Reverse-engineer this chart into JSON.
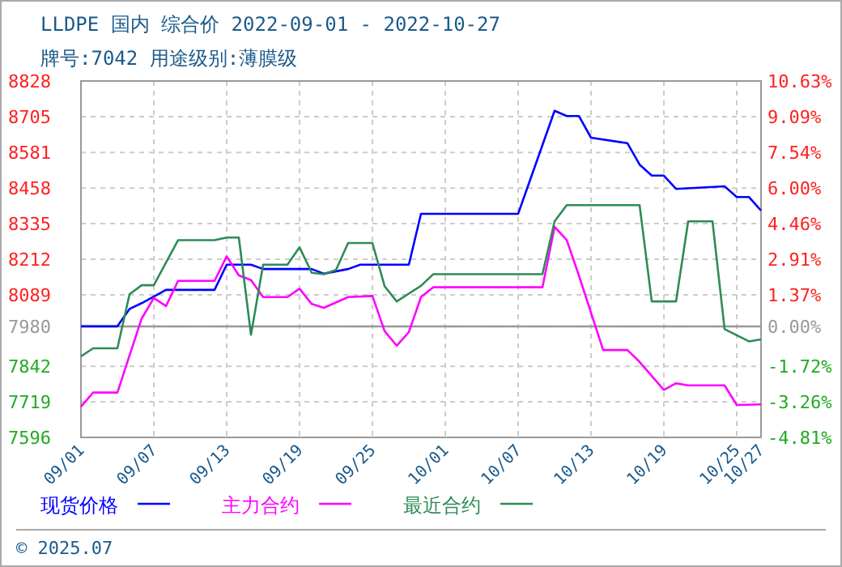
{
  "chart_data": {
    "type": "line",
    "title": "LLDPE 国内 综合价 2022-09-01 - 2022-10-27",
    "subtitle": "牌号:7042 用途级别:薄膜级",
    "annotations": [
      "© 2025.07"
    ],
    "xlim": [
      "2022-09-01",
      "2022-10-27"
    ],
    "xticks": [
      {
        "value": "2022-09-01",
        "label": "09/01"
      },
      {
        "value": "2022-09-07",
        "label": "09/07"
      },
      {
        "value": "2022-09-13",
        "label": "09/13"
      },
      {
        "value": "2022-09-19",
        "label": "09/19"
      },
      {
        "value": "2022-09-25",
        "label": "09/25"
      },
      {
        "value": "2022-10-01",
        "label": "10/01"
      },
      {
        "value": "2022-10-07",
        "label": "10/07"
      },
      {
        "value": "2022-10-13",
        "label": "10/13"
      },
      {
        "value": "2022-10-19",
        "label": "10/19"
      },
      {
        "value": "2022-10-25",
        "label": "10/25"
      },
      {
        "value": "2022-10-27",
        "label": "10/27"
      }
    ],
    "ylim": [
      7596,
      8828
    ],
    "yticks": [
      7596,
      7719,
      7842,
      7980,
      8089,
      8212,
      8335,
      8458,
      8581,
      8705,
      8828
    ],
    "y2lim": [
      -4.81,
      10.63
    ],
    "y2ticks": [
      {
        "value": -4.81,
        "label": "-4.81%"
      },
      {
        "value": -3.26,
        "label": "-3.26%"
      },
      {
        "value": -1.72,
        "label": "-1.72%"
      },
      {
        "value": 0,
        "label": "0.00%"
      },
      {
        "value": 1.37,
        "label": "1.37%"
      },
      {
        "value": 2.91,
        "label": "2.91%"
      },
      {
        "value": 4.46,
        "label": "4.46%"
      },
      {
        "value": 6.0,
        "label": "6.00%"
      },
      {
        "value": 7.54,
        "label": "7.54%"
      },
      {
        "value": 9.09,
        "label": "9.09%"
      },
      {
        "value": 10.63,
        "label": "10.63%"
      }
    ],
    "ref_lines": [
      {
        "axis": "y2",
        "value": 0,
        "color": "#999999"
      }
    ],
    "grid": true,
    "legend": "bottom",
    "marker": "none",
    "line_style": "solid",
    "series": [
      {
        "name": "现货价格",
        "color": "#0000ff",
        "x": [
          "2022-09-01",
          "2022-09-04",
          "2022-09-05",
          "2022-09-06",
          "2022-09-08",
          "2022-09-12",
          "2022-09-13",
          "2022-09-15",
          "2022-09-16",
          "2022-09-20",
          "2022-09-21",
          "2022-09-23",
          "2022-09-24",
          "2022-09-28",
          "2022-09-29",
          "2022-10-07",
          "2022-10-10",
          "2022-10-11",
          "2022-10-12",
          "2022-10-13",
          "2022-10-16",
          "2022-10-17",
          "2022-10-18",
          "2022-10-19",
          "2022-10-20",
          "2022-10-24",
          "2022-10-25",
          "2022-10-26",
          "2022-10-27"
        ],
        "values": [
          7980,
          7980,
          8040,
          8060,
          8106,
          8106,
          8193,
          8193,
          8178,
          8178,
          8162,
          8178,
          8193,
          8193,
          8369,
          8369,
          8725,
          8707,
          8707,
          8632,
          8613,
          8539,
          8501,
          8501,
          8455,
          8464,
          8427,
          8427,
          8380
        ]
      },
      {
        "name": "主力合约",
        "color": "#ff00ff",
        "x": [
          "2022-09-01",
          "2022-09-02",
          "2022-09-04",
          "2022-09-06",
          "2022-09-07",
          "2022-09-08",
          "2022-09-09",
          "2022-09-12",
          "2022-09-13",
          "2022-09-14",
          "2022-09-15",
          "2022-09-16",
          "2022-09-18",
          "2022-09-19",
          "2022-09-20",
          "2022-09-21",
          "2022-09-23",
          "2022-09-25",
          "2022-09-26",
          "2022-09-27",
          "2022-09-28",
          "2022-09-29",
          "2022-09-30",
          "2022-10-09",
          "2022-10-10",
          "2022-10-11",
          "2022-10-12",
          "2022-10-14",
          "2022-10-16",
          "2022-10-17",
          "2022-10-19",
          "2022-10-20",
          "2022-10-21",
          "2022-10-24",
          "2022-10-25",
          "2022-10-27"
        ],
        "values": [
          7702,
          7751,
          7751,
          8007,
          8078,
          8050,
          8137,
          8137,
          8222,
          8156,
          8140,
          8081,
          8081,
          8110,
          8057,
          8044,
          8081,
          8085,
          7964,
          7913,
          7960,
          8081,
          8115,
          8115,
          8324,
          8278,
          8156,
          7898,
          7898,
          7857,
          7760,
          7783,
          7776,
          7776,
          7708,
          7710
        ]
      },
      {
        "name": "最近合约",
        "color": "#2e8b57",
        "x": [
          "2022-09-01",
          "2022-09-02",
          "2022-09-04",
          "2022-09-05",
          "2022-09-06",
          "2022-09-07",
          "2022-09-09",
          "2022-09-12",
          "2022-09-13",
          "2022-09-14",
          "2022-09-15",
          "2022-09-16",
          "2022-09-18",
          "2022-09-19",
          "2022-09-20",
          "2022-09-21",
          "2022-09-22",
          "2022-09-23",
          "2022-09-25",
          "2022-09-26",
          "2022-09-27",
          "2022-09-29",
          "2022-09-30",
          "2022-10-09",
          "2022-10-10",
          "2022-10-11",
          "2022-10-17",
          "2022-10-18",
          "2022-10-20",
          "2022-10-21",
          "2022-10-23",
          "2022-10-24",
          "2022-10-26",
          "2022-10-27"
        ],
        "values": [
          7876,
          7904,
          7904,
          8091,
          8122,
          8122,
          8278,
          8278,
          8287,
          8287,
          7951,
          8193,
          8193,
          8253,
          8165,
          8160,
          8175,
          8268,
          8268,
          8119,
          8066,
          8120,
          8160,
          8160,
          8343,
          8399,
          8399,
          8066,
          8066,
          8343,
          8343,
          7970,
          7928,
          7935
        ]
      }
    ]
  }
}
